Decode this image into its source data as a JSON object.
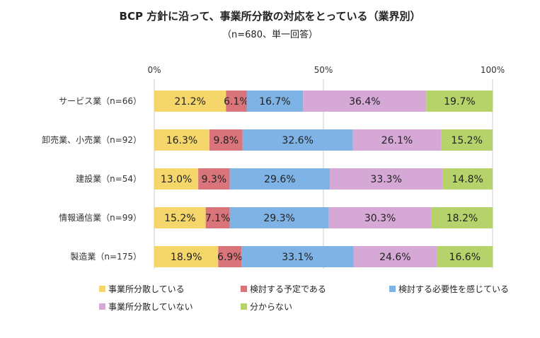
{
  "chart_data": {
    "type": "bar",
    "orientation": "horizontal-stacked-100",
    "title": "BCP 方針に沿って、事業所分散の対応をとっている（業界別）",
    "subtitle": "（n=680、単一回答）",
    "ticks": [
      "0%",
      "50%",
      "100%"
    ],
    "xlim": [
      0,
      100
    ],
    "categories": [
      "サービス業（n=66）",
      "卸売業、小売業（n=92）",
      "建設業（n=54）",
      "情報通信業（n=99）",
      "製造業（n=175）"
    ],
    "series": [
      {
        "name": "事業所分散している",
        "color": "#F5D66A",
        "values": [
          21.2,
          16.3,
          13.0,
          15.2,
          18.9
        ],
        "labels": [
          "21.2%",
          "16.3%",
          "13.0%",
          "15.2%",
          "18.9%"
        ]
      },
      {
        "name": "検討する予定である",
        "color": "#D9747B",
        "values": [
          6.1,
          9.8,
          9.3,
          7.1,
          6.9
        ],
        "labels": [
          "6.1%",
          "9.8%",
          "9.3%",
          "7.1%",
          "6.9%"
        ]
      },
      {
        "name": "検討する必要性を感じている",
        "color": "#7FB2E5",
        "values": [
          16.7,
          32.6,
          29.6,
          29.3,
          33.1
        ],
        "labels": [
          "16.7%",
          "32.6%",
          "29.6%",
          "29.3%",
          "33.1%"
        ]
      },
      {
        "name": "事業所分散していない",
        "color": "#D6A8D6",
        "values": [
          36.4,
          26.1,
          33.3,
          30.3,
          24.6
        ],
        "labels": [
          "36.4%",
          "26.1%",
          "33.3%",
          "30.3%",
          "24.6%"
        ]
      },
      {
        "name": "分からない",
        "color": "#B5D36A",
        "values": [
          19.7,
          15.2,
          14.8,
          18.2,
          16.6
        ],
        "labels": [
          "19.7%",
          "15.2%",
          "14.8%",
          "18.2%",
          "16.6%"
        ]
      }
    ],
    "legend_position": "bottom"
  }
}
